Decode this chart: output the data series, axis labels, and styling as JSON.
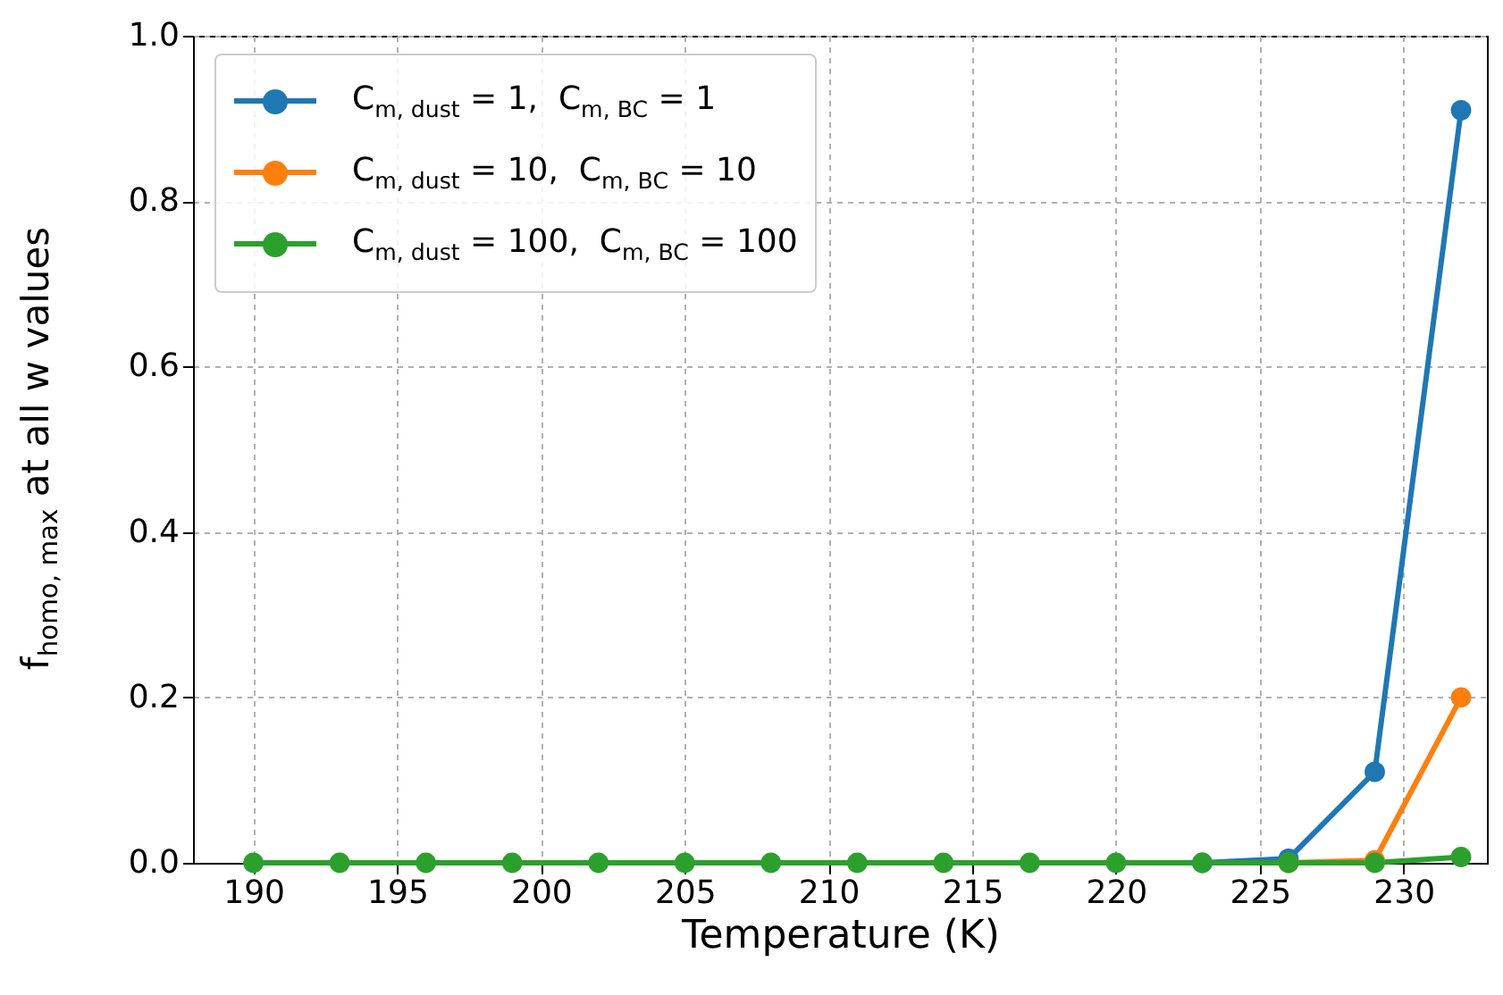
{
  "chart_data": {
    "type": "line",
    "xlabel": "Temperature (K)",
    "ylabel": "f$_{homo, max}$ at all w values",
    "x": [
      190,
      193,
      196,
      199,
      202,
      205,
      208,
      211,
      214,
      217,
      220,
      223,
      226,
      229,
      232
    ],
    "series": [
      {
        "name": "C$_{m, dust}$ = 1,  C$_{m, BC}$ = 1",
        "color": "#1f77b4",
        "values": [
          null,
          null,
          null,
          null,
          null,
          null,
          null,
          null,
          null,
          null,
          null,
          0,
          0.005,
          0.11,
          0.91
        ]
      },
      {
        "name": "C$_{m, dust}$ = 10,  C$_{m, BC}$ = 10",
        "color": "#ff7f0e",
        "values": [
          null,
          null,
          null,
          null,
          null,
          null,
          null,
          null,
          null,
          null,
          null,
          null,
          0,
          0.003,
          0.2
        ]
      },
      {
        "name": "C$_{m, dust}$ = 100,  C$_{m, BC}$ = 100",
        "color": "#2ca02c",
        "values": [
          0,
          0,
          0,
          0,
          0,
          0,
          0,
          0,
          0,
          0,
          0,
          0,
          0,
          0,
          0.007
        ]
      }
    ],
    "xlim": [
      187.9,
      232.9
    ],
    "xticks": [
      190,
      195,
      200,
      205,
      210,
      215,
      220,
      225,
      230
    ],
    "ylim": [
      0,
      1
    ],
    "yticks": [
      {
        "value": 0,
        "label": "0.0"
      },
      {
        "value": 0.2,
        "label": "0.2"
      },
      {
        "value": 0.4,
        "label": "0.4"
      },
      {
        "value": 0.6,
        "label": "0.6"
      },
      {
        "value": 0.8,
        "label": "0.8"
      },
      {
        "value": 1,
        "label": "1.0"
      }
    ],
    "grid": true,
    "legend": "top left",
    "marker": "circle",
    "line_style": "solid"
  }
}
